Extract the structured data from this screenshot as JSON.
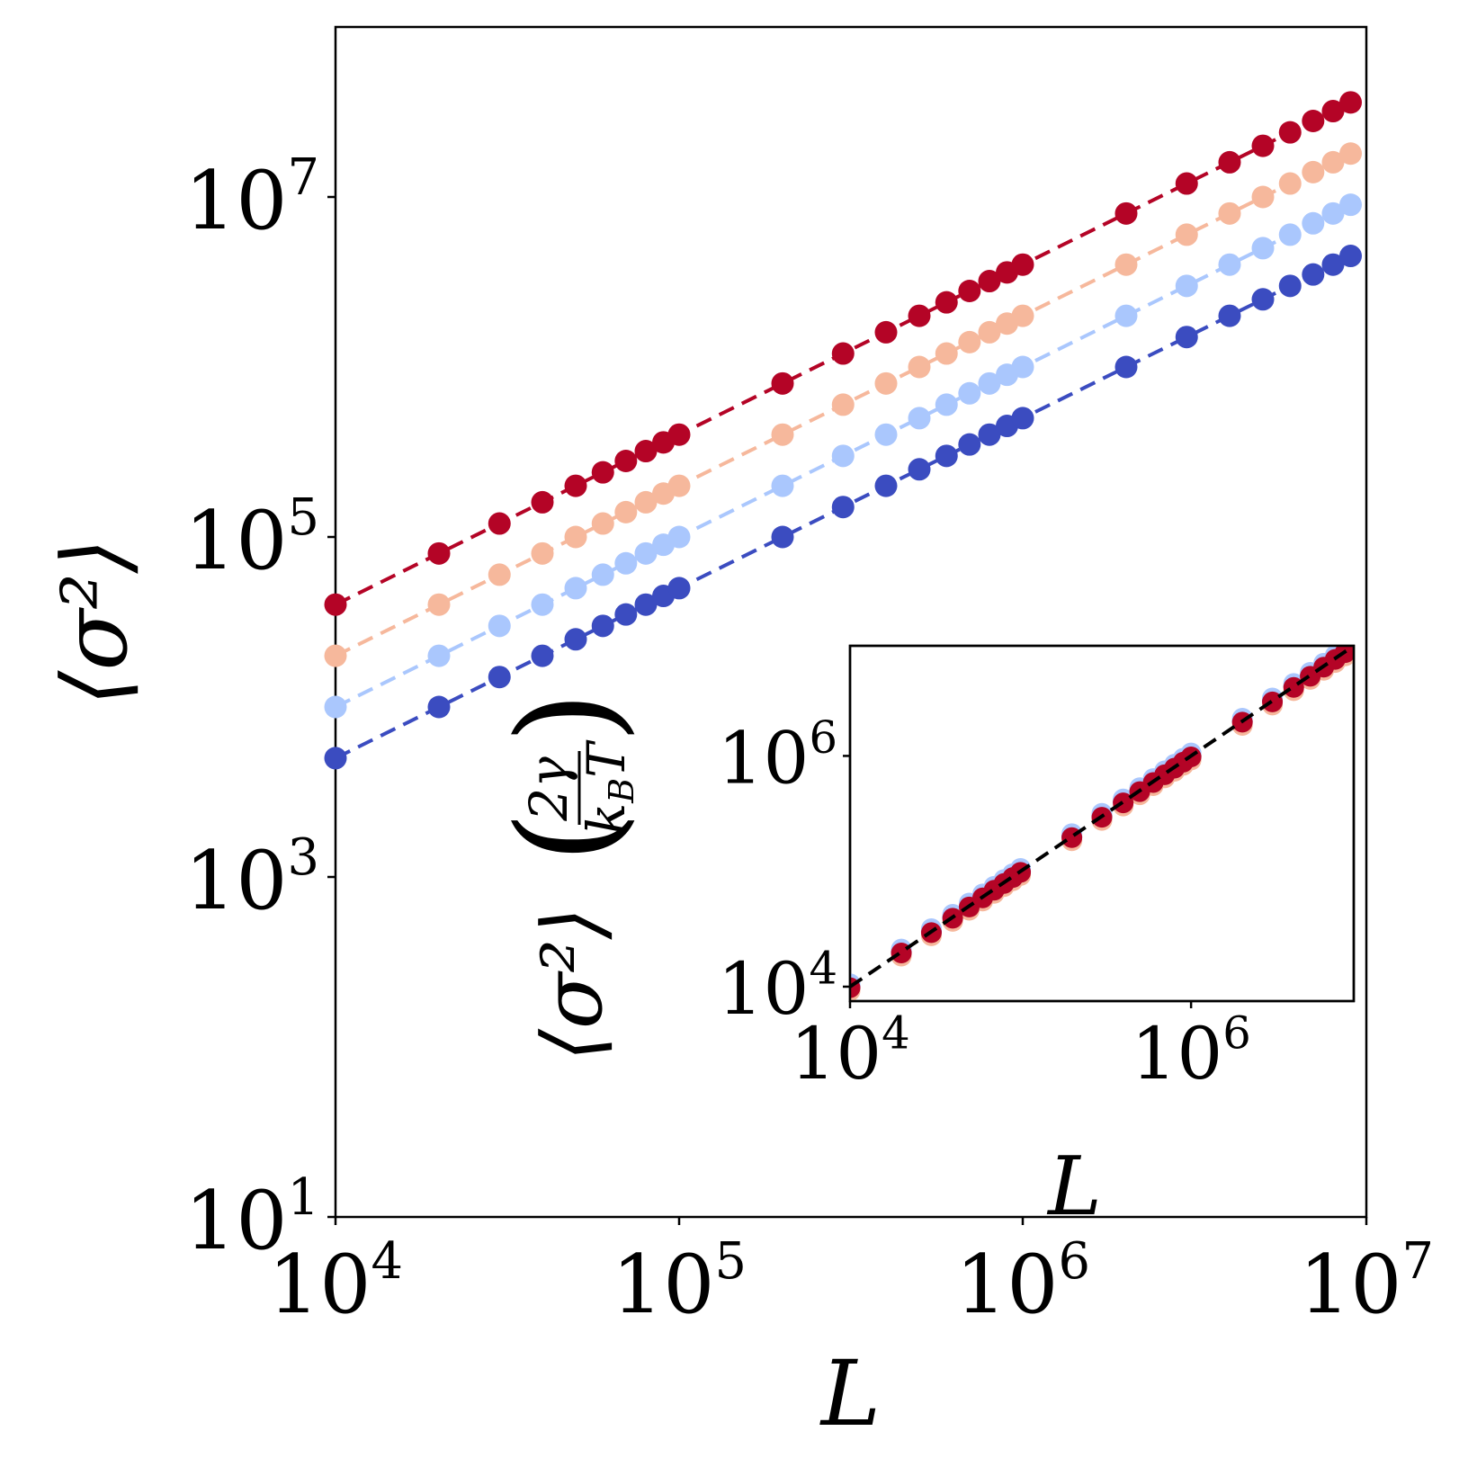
{
  "chart_data": [
    {
      "type": "scatter",
      "x_scale": "log",
      "y_scale": "log",
      "xlim": [
        10000,
        10000000
      ],
      "ylim": [
        10,
        100000000
      ],
      "xlabel": "L",
      "ylabel": "⟨σ²⟩",
      "x_ticks": [
        {
          "value": 10000,
          "label": "10",
          "exp": "4"
        },
        {
          "value": 100000,
          "label": "10",
          "exp": "5"
        },
        {
          "value": 1000000,
          "label": "10",
          "exp": "6"
        },
        {
          "value": 10000000,
          "label": "10",
          "exp": "7"
        }
      ],
      "y_ticks": [
        {
          "value": 10,
          "label": "10",
          "exp": "1"
        },
        {
          "value": 1000,
          "label": "10",
          "exp": "3"
        },
        {
          "value": 100000,
          "label": "10",
          "exp": "5"
        },
        {
          "value": 10000000,
          "label": "10",
          "exp": "7"
        }
      ],
      "x": [
        10000,
        20000,
        30000,
        40000,
        50000,
        60000,
        70000,
        80000,
        90000,
        100000,
        200000,
        300000,
        400000,
        500000,
        600000,
        700000,
        800000,
        900000,
        1000000,
        2000000,
        3000000,
        4000000,
        5000000,
        6000000,
        7000000,
        8000000,
        9000000
      ],
      "series": [
        {
          "color": "#3b4cc0",
          "values": [
            5000,
            10000,
            15000,
            20000,
            25000,
            30000,
            35000,
            40000,
            45000,
            50000,
            100000,
            150000,
            200000,
            250000,
            300000,
            350000,
            400000,
            450000,
            500000,
            1000000,
            1500000,
            2000000,
            2500000,
            3000000,
            3500000,
            4000000,
            4500000
          ]
        },
        {
          "color": "#aac7fd",
          "values": [
            10000,
            20000,
            30000,
            40000,
            50000,
            60000,
            70000,
            80000,
            90000,
            100000,
            200000,
            300000,
            400000,
            500000,
            600000,
            700000,
            800000,
            900000,
            1000000,
            2000000,
            3000000,
            4000000,
            5000000,
            6000000,
            7000000,
            8000000,
            9000000
          ]
        },
        {
          "color": "#f6b89c",
          "values": [
            20000,
            40000,
            60000,
            80000,
            100000,
            120000,
            140000,
            160000,
            180000,
            200000,
            400000,
            600000,
            800000,
            1000000,
            1200000,
            1400000,
            1600000,
            1800000,
            2000000,
            4000000,
            6000000,
            8000000,
            10000000,
            12000000,
            14000000,
            16000000,
            18000000
          ]
        },
        {
          "color": "#b40426",
          "values": [
            40000,
            80000,
            120000,
            160000,
            200000,
            240000,
            280000,
            320000,
            360000,
            400000,
            800000,
            1200000,
            1600000,
            2000000,
            2400000,
            2800000,
            3200000,
            3600000,
            4000000,
            8000000,
            12000000,
            16000000,
            20000000,
            24000000,
            28000000,
            32000000,
            36000000
          ]
        }
      ]
    },
    {
      "type": "scatter",
      "x_scale": "log",
      "y_scale": "log",
      "xlim": [
        10000,
        9000000
      ],
      "ylim": [
        7500,
        9000000
      ],
      "xlabel": "L",
      "ylabel_parts": {
        "main": "⟨σ²⟩",
        "num": "2γ",
        "den_k": "k",
        "den_sub": "B",
        "den_T": "T"
      },
      "x_ticks": [
        {
          "value": 10000,
          "label": "10",
          "exp": "4"
        },
        {
          "value": 1000000,
          "label": "10",
          "exp": "6"
        }
      ],
      "y_ticks": [
        {
          "value": 10000,
          "label": "10",
          "exp": "4"
        },
        {
          "value": 1000000,
          "label": "10",
          "exp": "6"
        }
      ],
      "fit_line": {
        "x": [
          10000,
          9000000
        ],
        "y": [
          10000,
          9000000
        ],
        "color": "#000000",
        "style": "dashed"
      },
      "x": [
        10000,
        20000,
        30000,
        40000,
        50000,
        60000,
        70000,
        80000,
        90000,
        100000,
        200000,
        300000,
        400000,
        500000,
        600000,
        700000,
        800000,
        900000,
        1000000,
        2000000,
        3000000,
        4000000,
        5000000,
        6000000,
        7000000,
        8000000,
        9000000
      ],
      "series": [
        {
          "color": "#3b4cc0",
          "factor": 1.0
        },
        {
          "color": "#aac7fd",
          "factor": 1.06
        },
        {
          "color": "#f6b89c",
          "factor": 0.92
        },
        {
          "color": "#b40426",
          "factor": 0.98
        }
      ]
    }
  ]
}
